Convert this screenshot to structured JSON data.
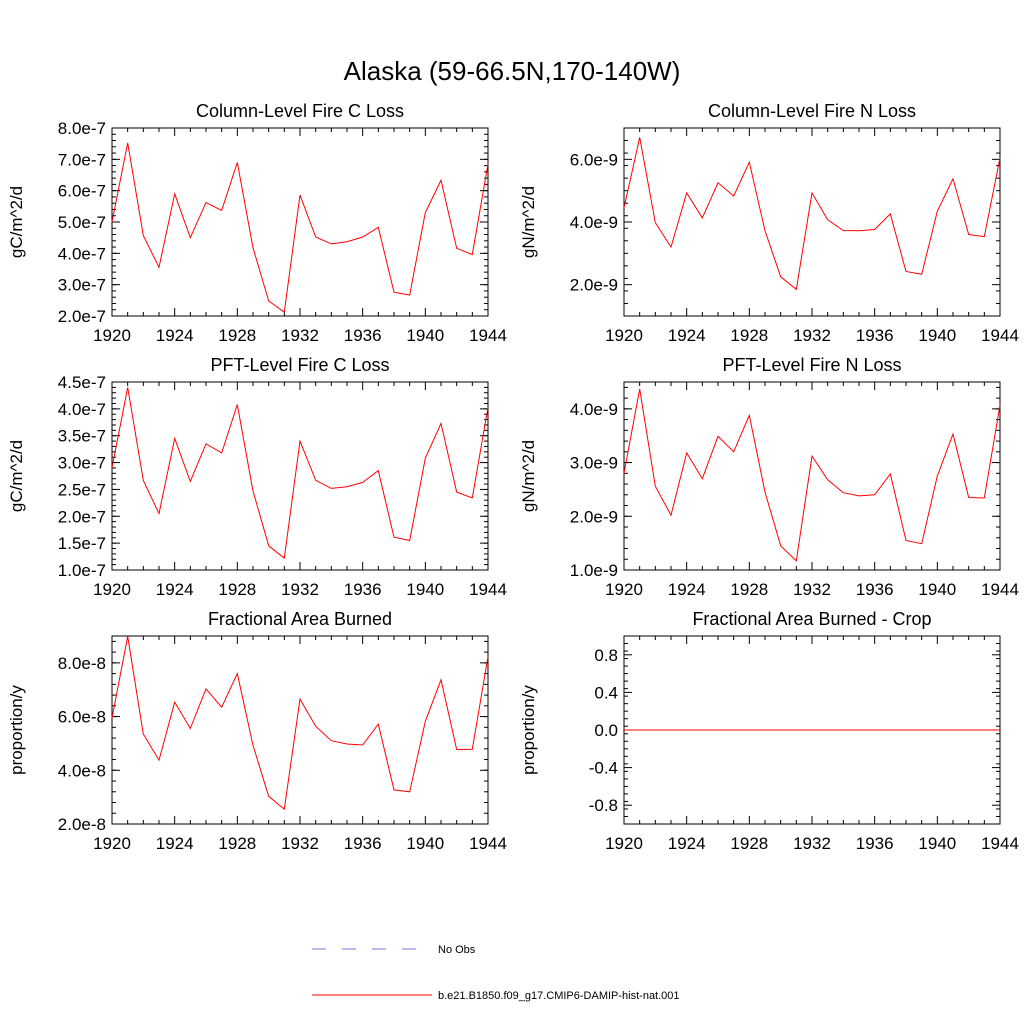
{
  "figure": {
    "title": "Alaska (59-66.5N,170-140W)",
    "line_color": "#ff0000",
    "obs_color": "#7a7ad8"
  },
  "legend": {
    "placement": "bottom-center",
    "entries": [
      {
        "label": "No Obs",
        "style": "dashed",
        "color": "#7a7ad8"
      },
      {
        "label": "b.e21.B1850.f09_g17.CMIP6-DAMIP-hist-nat.001",
        "style": "solid",
        "color": "#ff0000"
      }
    ]
  },
  "chart_data": [
    {
      "type": "line",
      "title": "Column-Level Fire C Loss",
      "ylabel": "gC/m^2/d",
      "xlim": [
        1920,
        1944
      ],
      "ylim": [
        2e-07,
        8e-07
      ],
      "xticks": [
        "1920",
        "1924",
        "1928",
        "1932",
        "1936",
        "1940",
        "1944"
      ],
      "yticks": [
        {
          "value": 2e-07,
          "label": "2.0e-7"
        },
        {
          "value": 3e-07,
          "label": "3.0e-7"
        },
        {
          "value": 4e-07,
          "label": "4.0e-7"
        },
        {
          "value": 5e-07,
          "label": "5.0e-7"
        },
        {
          "value": 6e-07,
          "label": "6.0e-7"
        },
        {
          "value": 7e-07,
          "label": "7.0e-7"
        },
        {
          "value": 8e-07,
          "label": "8.0e-7"
        }
      ],
      "x": [
        1920,
        1921,
        1922,
        1923,
        1924,
        1925,
        1926,
        1927,
        1928,
        1929,
        1930,
        1931,
        1932,
        1933,
        1934,
        1935,
        1936,
        1937,
        1938,
        1939,
        1940,
        1941,
        1942,
        1943,
        1944
      ],
      "series": [
        {
          "values": [
            5e-07,
            7.52e-07,
            4.57e-07,
            3.55e-07,
            5.9e-07,
            4.5e-07,
            5.62e-07,
            5.37e-07,
            6.9e-07,
            4.18e-07,
            2.48e-07,
            2.12e-07,
            5.86e-07,
            4.52e-07,
            4.3e-07,
            4.37e-07,
            4.52e-07,
            4.83e-07,
            2.76e-07,
            2.67e-07,
            5.3e-07,
            6.33e-07,
            4.16e-07,
            3.96e-07,
            6.85e-07
          ]
        }
      ]
    },
    {
      "type": "line",
      "title": "Column-Level Fire N Loss",
      "ylabel": "gN/m^2/d",
      "xlim": [
        1920,
        1944
      ],
      "ylim": [
        1e-09,
        7e-09
      ],
      "xticks": [
        "1920",
        "1924",
        "1928",
        "1932",
        "1936",
        "1940",
        "1944"
      ],
      "yticks": [
        {
          "value": 2e-09,
          "label": "2.0e-9"
        },
        {
          "value": 4e-09,
          "label": "4.0e-9"
        },
        {
          "value": 6e-09,
          "label": "6.0e-9"
        }
      ],
      "x": [
        1920,
        1921,
        1922,
        1923,
        1924,
        1925,
        1926,
        1927,
        1928,
        1929,
        1930,
        1931,
        1932,
        1933,
        1934,
        1935,
        1936,
        1937,
        1938,
        1939,
        1940,
        1941,
        1942,
        1943,
        1944
      ],
      "series": [
        {
          "values": [
            4.45e-09,
            6.7e-09,
            3.98e-09,
            3.2e-09,
            4.93e-09,
            4.13e-09,
            5.25e-09,
            4.83e-09,
            5.91e-09,
            3.72e-09,
            2.25e-09,
            1.85e-09,
            4.93e-09,
            4.07e-09,
            3.73e-09,
            3.72e-09,
            3.76e-09,
            4.26e-09,
            2.42e-09,
            2.33e-09,
            4.34e-09,
            5.38e-09,
            3.6e-09,
            3.53e-09,
            6.05e-09
          ]
        }
      ]
    },
    {
      "type": "line",
      "title": "PFT-Level Fire C Loss",
      "ylabel": "gC/m^2/d",
      "xlim": [
        1920,
        1944
      ],
      "ylim": [
        1e-07,
        4.5e-07
      ],
      "xticks": [
        "1920",
        "1924",
        "1928",
        "1932",
        "1936",
        "1940",
        "1944"
      ],
      "yticks": [
        {
          "value": 1e-07,
          "label": "1.0e-7"
        },
        {
          "value": 1.5e-07,
          "label": "1.5e-7"
        },
        {
          "value": 2e-07,
          "label": "2.0e-7"
        },
        {
          "value": 2.5e-07,
          "label": "2.5e-7"
        },
        {
          "value": 3e-07,
          "label": "3.0e-7"
        },
        {
          "value": 3.5e-07,
          "label": "3.5e-7"
        },
        {
          "value": 4e-07,
          "label": "4.0e-7"
        },
        {
          "value": 4.5e-07,
          "label": "4.5e-7"
        }
      ],
      "x": [
        1920,
        1921,
        1922,
        1923,
        1924,
        1925,
        1926,
        1927,
        1928,
        1929,
        1930,
        1931,
        1932,
        1933,
        1934,
        1935,
        1936,
        1937,
        1938,
        1939,
        1940,
        1941,
        1942,
        1943,
        1944
      ],
      "series": [
        {
          "values": [
            2.9e-07,
            4.4e-07,
            2.67e-07,
            2.05e-07,
            3.45e-07,
            2.65e-07,
            3.35e-07,
            3.18e-07,
            4.08e-07,
            2.47e-07,
            1.45e-07,
            1.22e-07,
            3.4e-07,
            2.67e-07,
            2.52e-07,
            2.55e-07,
            2.63e-07,
            2.85e-07,
            1.61e-07,
            1.55e-07,
            3.08e-07,
            3.73e-07,
            2.45e-07,
            2.34e-07,
            4.03e-07
          ]
        }
      ]
    },
    {
      "type": "line",
      "title": "PFT-Level Fire N Loss",
      "ylabel": "gN/m^2/d",
      "xlim": [
        1920,
        1944
      ],
      "ylim": [
        1e-09,
        4.5e-09
      ],
      "xticks": [
        "1920",
        "1924",
        "1928",
        "1932",
        "1936",
        "1940",
        "1944"
      ],
      "yticks": [
        {
          "value": 1e-09,
          "label": "1.0e-9"
        },
        {
          "value": 2e-09,
          "label": "2.0e-9"
        },
        {
          "value": 3e-09,
          "label": "3.0e-9"
        },
        {
          "value": 4e-09,
          "label": "4.0e-9"
        }
      ],
      "x": [
        1920,
        1921,
        1922,
        1923,
        1924,
        1925,
        1926,
        1927,
        1928,
        1929,
        1930,
        1931,
        1932,
        1933,
        1934,
        1935,
        1936,
        1937,
        1938,
        1939,
        1940,
        1941,
        1942,
        1943,
        1944
      ],
      "series": [
        {
          "values": [
            2.8e-09,
            4.37e-09,
            2.56e-09,
            2.02e-09,
            3.18e-09,
            2.7e-09,
            3.49e-09,
            3.2e-09,
            3.88e-09,
            2.45e-09,
            1.45e-09,
            1.17e-09,
            3.12e-09,
            2.68e-09,
            2.44e-09,
            2.38e-09,
            2.4e-09,
            2.79e-09,
            1.55e-09,
            1.49e-09,
            2.75e-09,
            3.53e-09,
            2.35e-09,
            2.34e-09,
            4.07e-09
          ]
        }
      ]
    },
    {
      "type": "line",
      "title": "Fractional Area Burned",
      "ylabel": "proportion/y",
      "xlim": [
        1920,
        1944
      ],
      "ylim": [
        2e-08,
        9e-08
      ],
      "xticks": [
        "1920",
        "1924",
        "1928",
        "1932",
        "1936",
        "1940",
        "1944"
      ],
      "yticks": [
        {
          "value": 2e-08,
          "label": "2.0e-8"
        },
        {
          "value": 4e-08,
          "label": "4.0e-8"
        },
        {
          "value": 6e-08,
          "label": "6.0e-8"
        },
        {
          "value": 8e-08,
          "label": "8.0e-8"
        }
      ],
      "x": [
        1920,
        1921,
        1922,
        1923,
        1924,
        1925,
        1926,
        1927,
        1928,
        1929,
        1930,
        1931,
        1932,
        1933,
        1934,
        1935,
        1936,
        1937,
        1938,
        1939,
        1940,
        1941,
        1942,
        1943,
        1944
      ],
      "series": [
        {
          "values": [
            5.95e-08,
            8.98e-08,
            5.35e-08,
            4.38e-08,
            6.54e-08,
            5.56e-08,
            7.03e-08,
            6.35e-08,
            7.6e-08,
            4.93e-08,
            3.03e-08,
            2.55e-08,
            6.65e-08,
            5.64e-08,
            5.1e-08,
            4.98e-08,
            4.94e-08,
            5.72e-08,
            3.27e-08,
            3.2e-08,
            5.82e-08,
            7.37e-08,
            4.77e-08,
            4.78e-08,
            8.23e-08
          ]
        }
      ]
    },
    {
      "type": "line",
      "title": "Fractional Area Burned - Crop",
      "ylabel": "proportion/y",
      "xlim": [
        1920,
        1944
      ],
      "ylim": [
        -1.0,
        1.0
      ],
      "xticks": [
        "1920",
        "1924",
        "1928",
        "1932",
        "1936",
        "1940",
        "1944"
      ],
      "yticks": [
        {
          "value": -0.8,
          "label": "-0.8"
        },
        {
          "value": -0.4,
          "label": "-0.4"
        },
        {
          "value": 0.0,
          "label": "0.0"
        },
        {
          "value": 0.4,
          "label": "0.4"
        },
        {
          "value": 0.8,
          "label": "0.8"
        }
      ],
      "x": [
        1920,
        1921,
        1922,
        1923,
        1924,
        1925,
        1926,
        1927,
        1928,
        1929,
        1930,
        1931,
        1932,
        1933,
        1934,
        1935,
        1936,
        1937,
        1938,
        1939,
        1940,
        1941,
        1942,
        1943,
        1944
      ],
      "series": [
        {
          "values": [
            0,
            0,
            0,
            0,
            0,
            0,
            0,
            0,
            0,
            0,
            0,
            0,
            0,
            0,
            0,
            0,
            0,
            0,
            0,
            0,
            0,
            0,
            0,
            0,
            0
          ]
        }
      ]
    }
  ]
}
